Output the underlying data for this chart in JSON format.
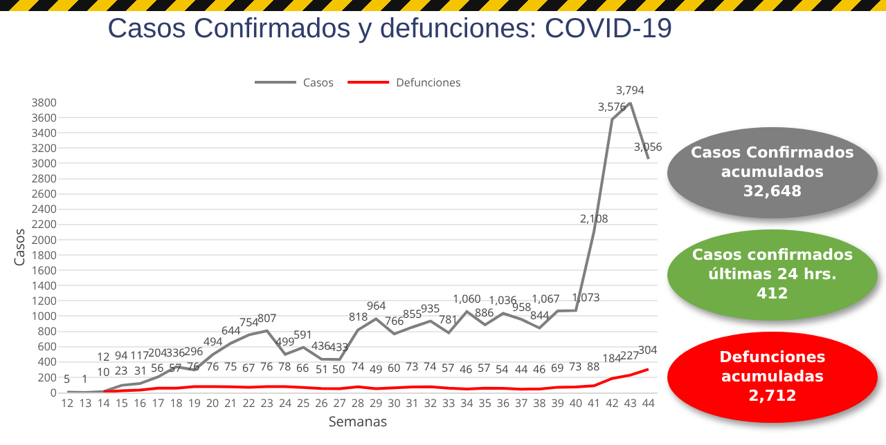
{
  "chart_data": [
    {
      "type": "line",
      "title": "Casos Confirmados y defunciones: COVID-19",
      "xlabel": "Semanas",
      "ylabel": "Casos",
      "categories": [
        "12",
        "13",
        "14",
        "15",
        "16",
        "17",
        "18",
        "19",
        "20",
        "21",
        "22",
        "23",
        "24",
        "25",
        "26",
        "27",
        "28",
        "29",
        "30",
        "31",
        "32",
        "33",
        "34",
        "35",
        "36",
        "37",
        "38",
        "39",
        "40",
        "41",
        "42",
        "43",
        "44"
      ],
      "series": [
        {
          "name": "Casos",
          "color": "#7f7f7f",
          "values": [
            5,
            1,
            12,
            94,
            117,
            204,
            336,
            296,
            494,
            644,
            754,
            807,
            499,
            591,
            436,
            433,
            818,
            964,
            766,
            855,
            935,
            781,
            1060,
            886,
            1036,
            958,
            844,
            1067,
            1073,
            2108,
            3576,
            3794,
            3056
          ],
          "value_labels": [
            "5",
            "1",
            "12",
            "94",
            "117",
            "204",
            "336",
            "296",
            "494",
            "644",
            "754",
            "807",
            "499",
            "591",
            "436",
            "433",
            "818",
            "964",
            "766",
            "855",
            "935",
            "781",
            "1,060",
            "886",
            "1,036",
            "958",
            "844",
            "1,067",
            "1,073",
            "2,108",
            "3,576",
            "3,794",
            "3,056"
          ]
        },
        {
          "name": "Defunciones",
          "color": "#ff0000",
          "values": [
            null,
            null,
            10,
            23,
            31,
            56,
            57,
            76,
            76,
            75,
            67,
            76,
            78,
            66,
            51,
            50,
            74,
            49,
            60,
            73,
            74,
            57,
            46,
            57,
            54,
            44,
            46,
            69,
            73,
            88,
            184,
            227,
            304
          ],
          "value_labels": [
            null,
            null,
            "10",
            "23",
            "31",
            "56",
            "57",
            "76",
            "76",
            "75",
            "67",
            "76",
            "78",
            "66",
            "51",
            "50",
            "74",
            "49",
            "60",
            "73",
            "74",
            "57",
            "46",
            "57",
            "54",
            "44",
            "46",
            "69",
            "73",
            "88",
            "184",
            "227",
            "304"
          ]
        }
      ],
      "ylim": [
        0,
        3800
      ],
      "yticks": [
        0,
        200,
        400,
        600,
        800,
        1000,
        1200,
        1400,
        1600,
        1800,
        2000,
        2200,
        2400,
        2600,
        2800,
        3000,
        3200,
        3400,
        3600,
        3800
      ],
      "grid": "y",
      "legend": "top",
      "marker": "none",
      "line_style": "solid"
    },
    {
      "type": "other",
      "annotations": [
        "Casos Confirmados\nacumulados\n32,648",
        "Casos confirmados\núltimas 24 hrs.\n412",
        "Defunciones\nacumuladas\n2,712"
      ],
      "colors": [
        "#7f7f7f",
        "#70ad47",
        "#ff0000"
      ]
    }
  ]
}
